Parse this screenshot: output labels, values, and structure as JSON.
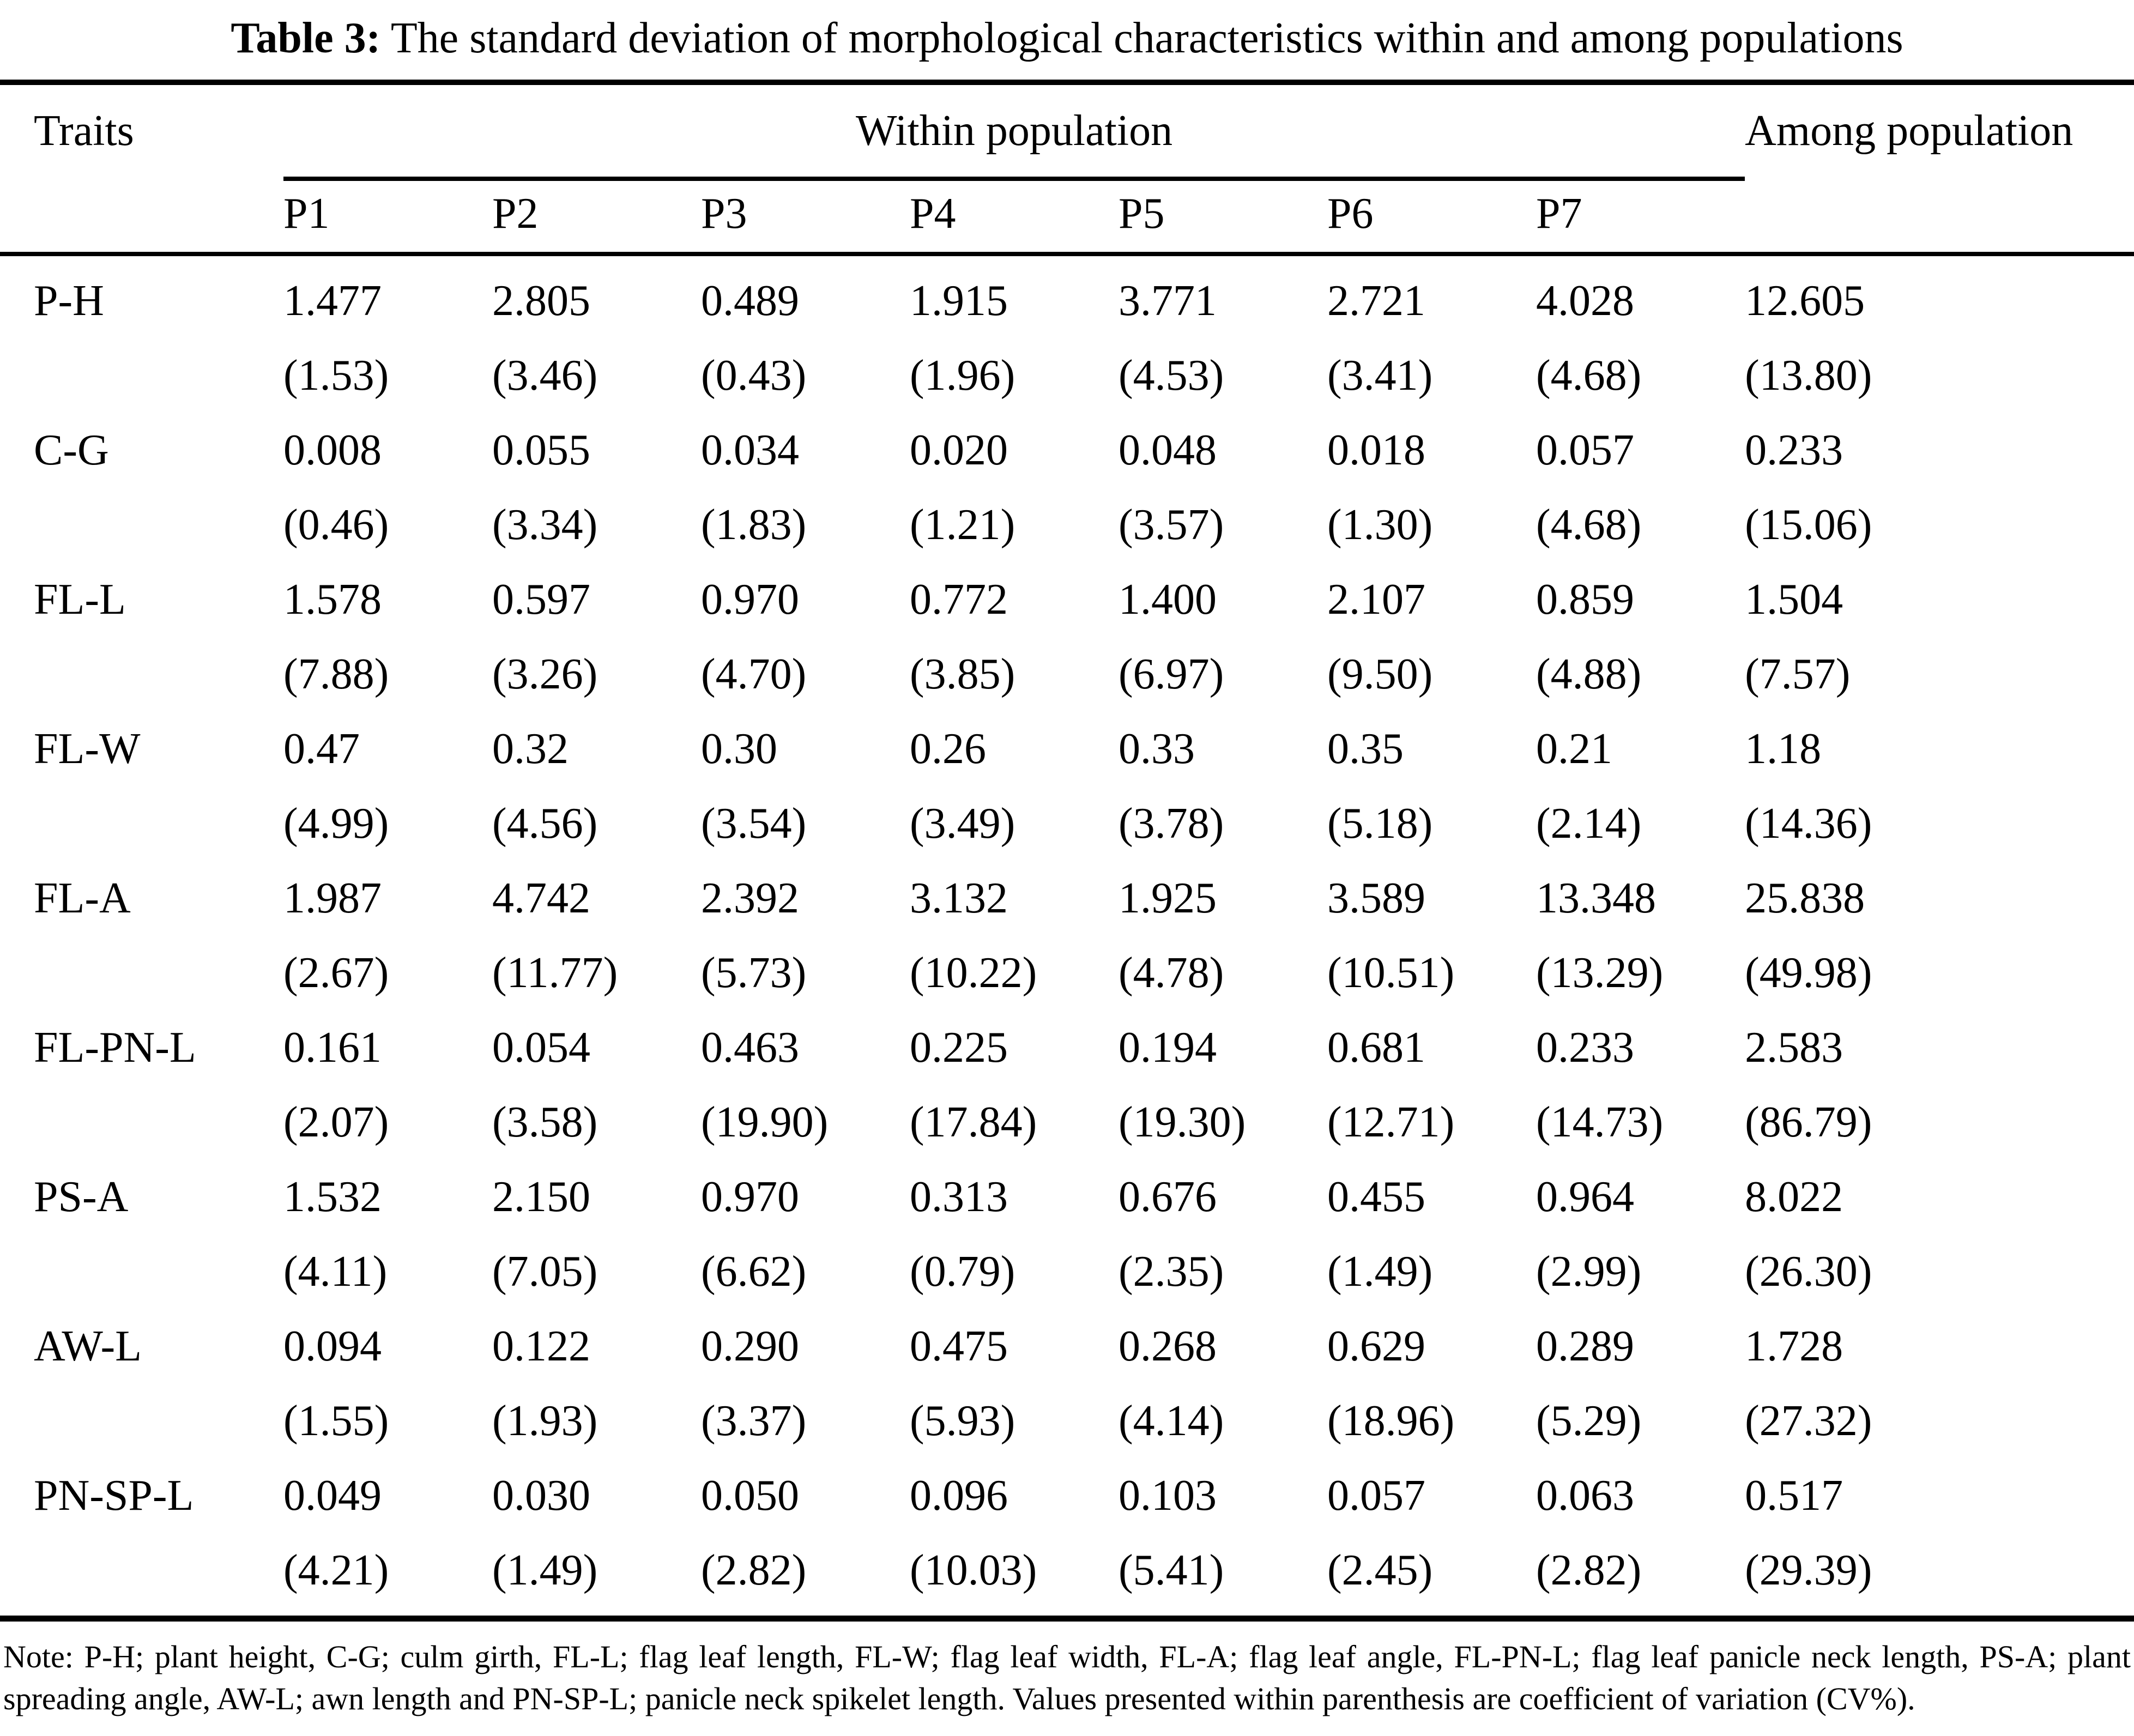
{
  "colors": {
    "text": "#000000",
    "background": "#ffffff",
    "rule": "#000000"
  },
  "title": {
    "label": "Table 3:",
    "text": "The standard deviation of morphological characteristics within and among populations"
  },
  "table": {
    "traits_header": "Traits",
    "within_header": "Within population",
    "among_header": "Among population",
    "population_headers": [
      "P1",
      "P2",
      "P3",
      "P4",
      "P5",
      "P6",
      "P7"
    ],
    "rows": [
      {
        "trait": "P-H",
        "values": [
          "1.477",
          "2.805",
          "0.489",
          "1.915",
          "3.771",
          "2.721",
          "4.028",
          "12.605"
        ],
        "cv": [
          "(1.53)",
          "(3.46)",
          "(0.43)",
          "(1.96)",
          "(4.53)",
          "(3.41)",
          "(4.68)",
          "(13.80)"
        ]
      },
      {
        "trait": "C-G",
        "values": [
          "0.008",
          "0.055",
          "0.034",
          "0.020",
          "0.048",
          "0.018",
          "0.057",
          "0.233"
        ],
        "cv": [
          "(0.46)",
          "(3.34)",
          "(1.83)",
          "(1.21)",
          "(3.57)",
          "(1.30)",
          "(4.68)",
          "(15.06)"
        ]
      },
      {
        "trait": "FL-L",
        "values": [
          "1.578",
          "0.597",
          "0.970",
          "0.772",
          "1.400",
          "2.107",
          "0.859",
          "1.504"
        ],
        "cv": [
          "(7.88)",
          "(3.26)",
          "(4.70)",
          "(3.85)",
          "(6.97)",
          "(9.50)",
          "(4.88)",
          "(7.57)"
        ]
      },
      {
        "trait": "FL-W",
        "values": [
          "0.47",
          "0.32",
          "0.30",
          "0.26",
          "0.33",
          "0.35",
          "0.21",
          "1.18"
        ],
        "cv": [
          "(4.99)",
          "(4.56)",
          "(3.54)",
          "(3.49)",
          "(3.78)",
          "(5.18)",
          "(2.14)",
          "(14.36)"
        ]
      },
      {
        "trait": "FL-A",
        "values": [
          "1.987",
          "4.742",
          "2.392",
          "3.132",
          "1.925",
          "3.589",
          "13.348",
          "25.838"
        ],
        "cv": [
          "(2.67)",
          "(11.77)",
          "(5.73)",
          "(10.22)",
          "(4.78)",
          "(10.51)",
          "(13.29)",
          "(49.98)"
        ]
      },
      {
        "trait": "FL-PN-L",
        "values": [
          "0.161",
          "0.054",
          "0.463",
          "0.225",
          "0.194",
          "0.681",
          "0.233",
          "2.583"
        ],
        "cv": [
          "(2.07)",
          "(3.58)",
          "(19.90)",
          "(17.84)",
          "(19.30)",
          "(12.71)",
          "(14.73)",
          "(86.79)"
        ]
      },
      {
        "trait": "PS-A",
        "values": [
          "1.532",
          "2.150",
          "0.970",
          "0.313",
          "0.676",
          "0.455",
          "0.964",
          "8.022"
        ],
        "cv": [
          "(4.11)",
          "(7.05)",
          "(6.62)",
          "(0.79)",
          "(2.35)",
          "(1.49)",
          "(2.99)",
          "(26.30)"
        ]
      },
      {
        "trait": "AW-L",
        "values": [
          "0.094",
          "0.122",
          "0.290",
          "0.475",
          "0.268",
          "0.629",
          "0.289",
          "1.728"
        ],
        "cv": [
          "(1.55)",
          "(1.93)",
          "(3.37)",
          "(5.93)",
          "(4.14)",
          "(18.96)",
          "(5.29)",
          "(27.32)"
        ]
      },
      {
        "trait": "PN-SP-L",
        "values": [
          "0.049",
          "0.030",
          "0.050",
          "0.096",
          "0.103",
          "0.057",
          "0.063",
          "0.517"
        ],
        "cv": [
          "(4.21)",
          "(1.49)",
          "(2.82)",
          "(10.03)",
          "(5.41)",
          "(2.45)",
          "(2.82)",
          "(29.39)"
        ]
      }
    ]
  },
  "note": "Note: P-H; plant height, C-G; culm girth, FL-L; flag leaf length, FL-W; flag leaf width, FL-A; flag leaf angle, FL-PN-L; flag leaf panicle neck length, PS-A; plant spreading angle, AW-L; awn length and PN-SP-L; panicle neck spikelet length. Values presented within parenthesis are coefficient of variation (CV%)."
}
